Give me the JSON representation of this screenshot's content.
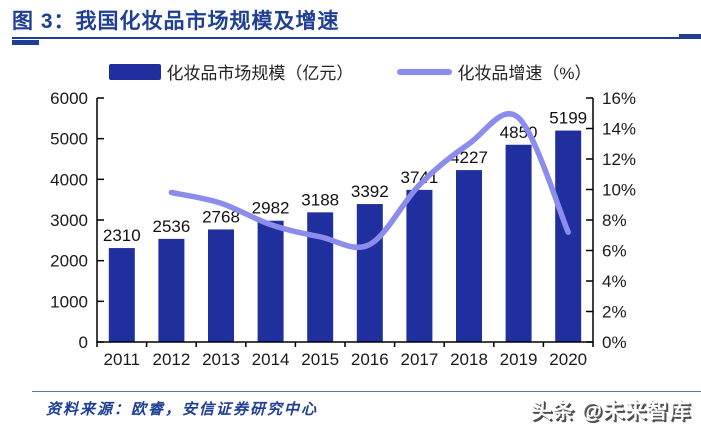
{
  "header": {
    "title": "图 3：我国化妆品市场规模及增速"
  },
  "legend": {
    "bars_label": "化妆品市场规模（亿元）",
    "line_label": "化妆品增速（%）"
  },
  "footer": {
    "source": "资料来源：欧睿，安信证券研究中心",
    "watermark": "头条 @未来智库"
  },
  "colors": {
    "title_navy": "#1e3f94",
    "bar_blue": "#1f2f9e",
    "line_periwinkle": "#8c8cec",
    "axis_black": "#000000"
  },
  "chart_data": {
    "type": "bar",
    "subtype": "bar+line combo, dual axis",
    "title": "我国化妆品市场规模及增速",
    "categories": [
      "2011",
      "2012",
      "2013",
      "2014",
      "2015",
      "2016",
      "2017",
      "2018",
      "2019",
      "2020"
    ],
    "series": [
      {
        "name": "化妆品市场规模（亿元）",
        "type": "bar",
        "axis": "left",
        "color": "#1f2f9e",
        "values": [
          2310,
          2536,
          2768,
          2982,
          3188,
          3392,
          3741,
          4227,
          4850,
          5199
        ],
        "data_labels": true
      },
      {
        "name": "化妆品增速（%）",
        "type": "line",
        "axis": "right",
        "color": "#8c8cec",
        "smooth": true,
        "x": [
          "2012",
          "2013",
          "2014",
          "2015",
          "2016",
          "2017",
          "2018",
          "2019",
          "2020"
        ],
        "values": [
          9.8,
          9.1,
          7.7,
          6.9,
          6.4,
          10.3,
          13.0,
          14.7,
          7.2
        ]
      }
    ],
    "left_axis": {
      "min": 0,
      "max": 6000,
      "step": 1000,
      "suffix": ""
    },
    "right_axis": {
      "min": 0,
      "max": 16,
      "step": 2,
      "suffix": "%"
    },
    "grid": false,
    "legend_position": "top-center"
  }
}
